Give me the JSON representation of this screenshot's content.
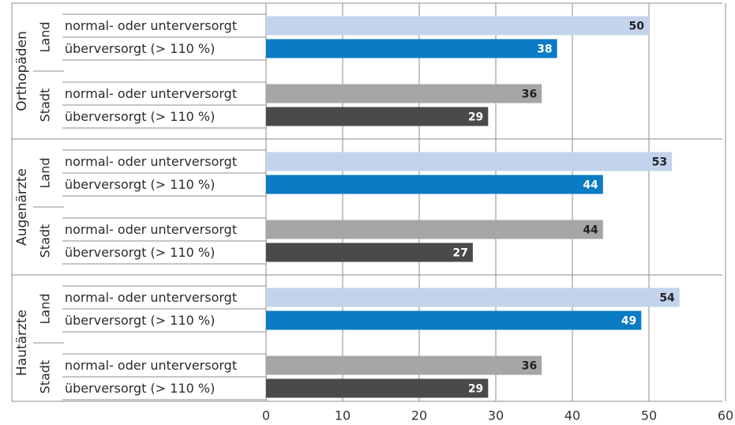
{
  "chart_data": {
    "type": "bar",
    "orientation": "horizontal",
    "xlim": [
      0,
      60
    ],
    "xticks": [
      0,
      10,
      20,
      30,
      40,
      50,
      60
    ],
    "grid": true,
    "colors": {
      "land_normal": "#c3d3ec",
      "land_over": "#0a7bc4",
      "stadt_normal": "#a6a6a6",
      "stadt_over": "#4a4a4a"
    },
    "groups": [
      {
        "name": "Orthopäden",
        "subgroups": [
          {
            "name": "Land",
            "bars": [
              {
                "label": "normal- oder unterversorgt",
                "value": 50,
                "style": "land_normal"
              },
              {
                "label": "überversorgt (> 110 %)",
                "value": 38,
                "style": "land_over"
              }
            ]
          },
          {
            "name": "Stadt",
            "bars": [
              {
                "label": "normal- oder unterversorgt",
                "value": 36,
                "style": "stadt_normal"
              },
              {
                "label": "überversorgt (> 110 %)",
                "value": 29,
                "style": "stadt_over"
              }
            ]
          }
        ]
      },
      {
        "name": "Augenärzte",
        "subgroups": [
          {
            "name": "Land",
            "bars": [
              {
                "label": "normal- oder unterversorgt",
                "value": 53,
                "style": "land_normal"
              },
              {
                "label": "überversorgt (> 110 %)",
                "value": 44,
                "style": "land_over"
              }
            ]
          },
          {
            "name": "Stadt",
            "bars": [
              {
                "label": "normal- oder unterversorgt",
                "value": 44,
                "style": "stadt_normal"
              },
              {
                "label": "überversorgt (> 110 %)",
                "value": 27,
                "style": "stadt_over"
              }
            ]
          }
        ]
      },
      {
        "name": "Hautärzte",
        "subgroups": [
          {
            "name": "Land",
            "bars": [
              {
                "label": "normal- oder unterversorgt",
                "value": 54,
                "style": "land_normal"
              },
              {
                "label": "überversorgt (> 110 %)",
                "value": 49,
                "style": "land_over"
              }
            ]
          },
          {
            "name": "Stadt",
            "bars": [
              {
                "label": "normal- oder unterversorgt",
                "value": 36,
                "style": "stadt_normal"
              },
              {
                "label": "überversorgt (> 110 %)",
                "value": 29,
                "style": "stadt_over"
              }
            ]
          }
        ]
      }
    ]
  }
}
